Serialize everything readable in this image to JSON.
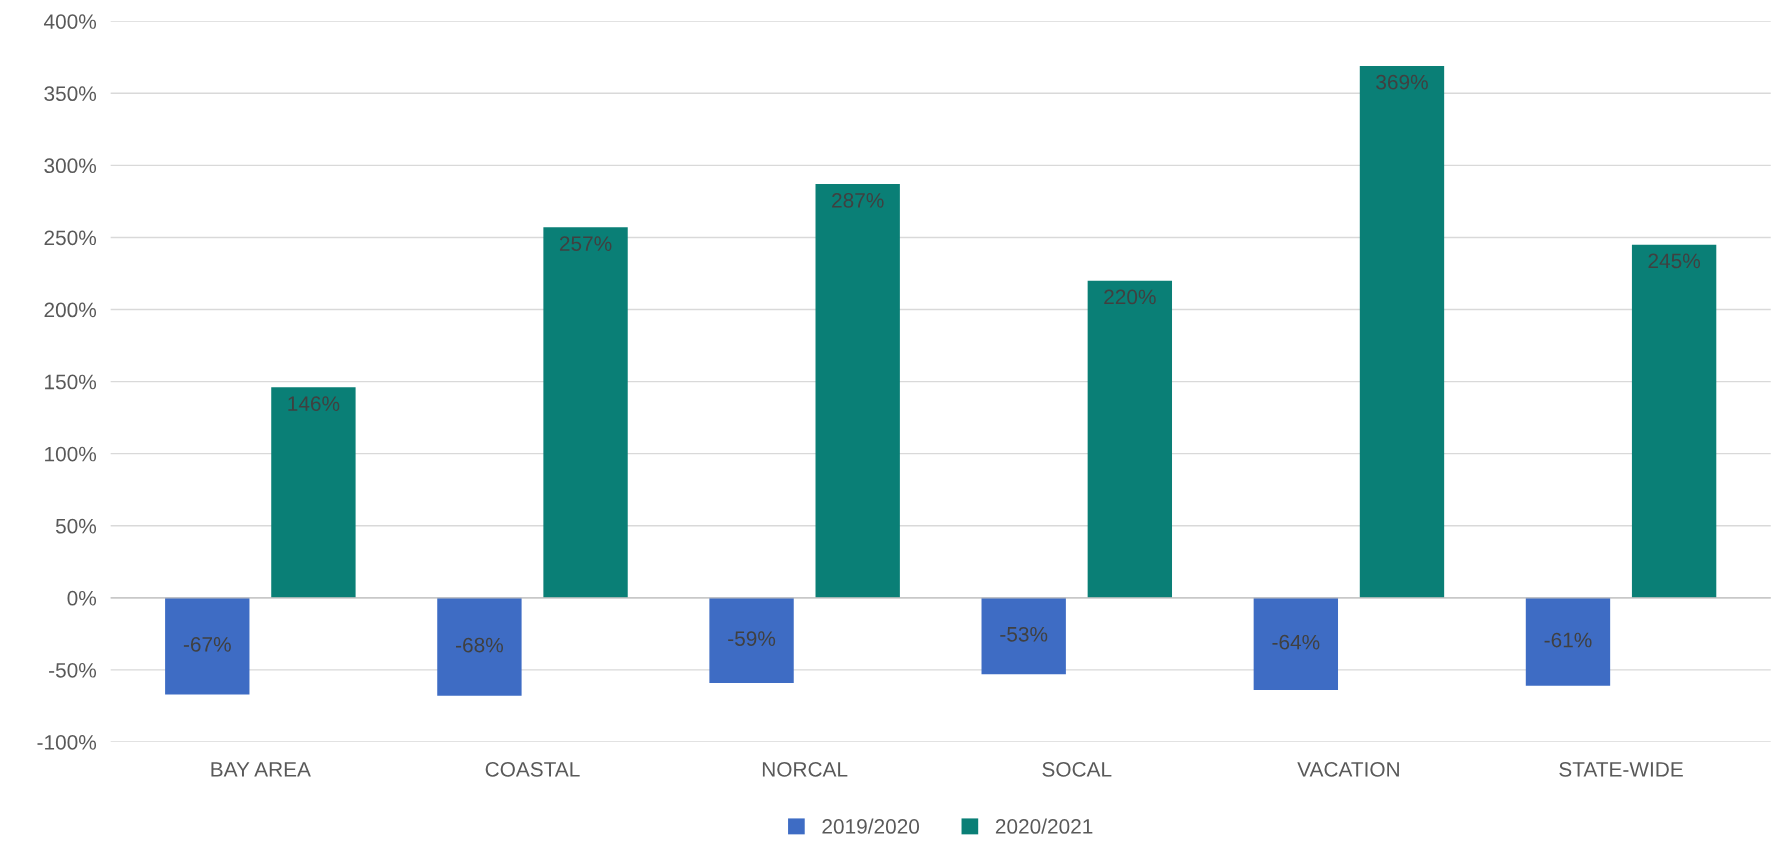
{
  "chart_data": {
    "type": "bar",
    "categories": [
      "BAY AREA",
      "COASTAL",
      "NORCAL",
      "SOCAL",
      "VACATION",
      "STATE-WIDE"
    ],
    "series": [
      {
        "name": "2019/2020",
        "color": "#3e6cc4",
        "values": [
          -67,
          -68,
          -59,
          -53,
          -64,
          -61
        ],
        "value_labels": [
          "-67%",
          "-68%",
          "-59%",
          "-53%",
          "-64%",
          "-61%"
        ]
      },
      {
        "name": "2020/2021",
        "color": "#0a7f76",
        "values": [
          146,
          257,
          287,
          220,
          369,
          245
        ],
        "value_labels": [
          "146%",
          "257%",
          "287%",
          "220%",
          "369%",
          "245%"
        ]
      }
    ],
    "ylim": [
      -100,
      400
    ],
    "yticks": [
      {
        "value": -100,
        "label": "-100%"
      },
      {
        "value": -50,
        "label": "-50%"
      },
      {
        "value": 0,
        "label": "0%"
      },
      {
        "value": 50,
        "label": "50%"
      },
      {
        "value": 100,
        "label": "100%"
      },
      {
        "value": 150,
        "label": "150%"
      },
      {
        "value": 200,
        "label": "200%"
      },
      {
        "value": 250,
        "label": "250%"
      },
      {
        "value": 300,
        "label": "300%"
      },
      {
        "value": 350,
        "label": "350%"
      },
      {
        "value": 400,
        "label": "400%"
      }
    ],
    "grid": "y",
    "legend": "bottom"
  }
}
